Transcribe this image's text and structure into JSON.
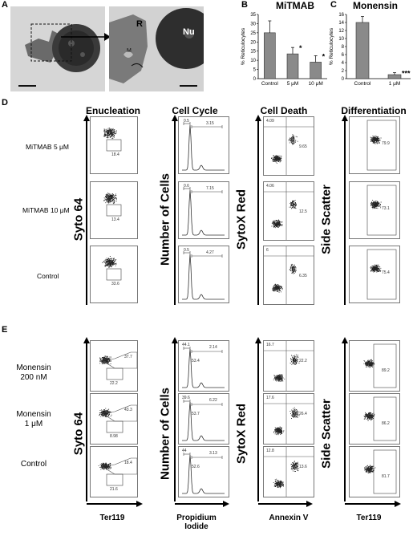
{
  "panels": {
    "A": "A",
    "B": "B",
    "C": "C",
    "D": "D",
    "E": "E"
  },
  "panel_a": {
    "label_r": "R",
    "label_nu": "Nu",
    "label_m": "M"
  },
  "chart_b": {
    "type": "bar",
    "title": "MiTMAB",
    "ylabel": "% Reticulocytes",
    "categories": [
      "Control",
      "5 μM",
      "10 μM"
    ],
    "values": [
      25,
      13.5,
      9
    ],
    "errors": [
      6.5,
      3.5,
      3.5
    ],
    "significance": [
      "",
      "*",
      "*"
    ],
    "ylim": [
      0,
      35
    ],
    "yticks": [
      0,
      5,
      10,
      15,
      20,
      25,
      30,
      35
    ]
  },
  "chart_c": {
    "type": "bar",
    "title": "Monensin",
    "ylabel": "% Reticulocytes",
    "categories": [
      "Control",
      "1 μM"
    ],
    "values": [
      14,
      1
    ],
    "errors": [
      1.5,
      0.5
    ],
    "significance": [
      "",
      "***"
    ],
    "ylim": [
      0,
      16
    ],
    "yticks": [
      0,
      2,
      4,
      6,
      8,
      10,
      12,
      14,
      16
    ]
  },
  "col_heads": [
    "Enucleation",
    "Cell Cycle",
    "Cell Death",
    "Differentiation"
  ],
  "d": {
    "rows": [
      "MiTMAB 5 μM",
      "MiTMAB 10 μM",
      "Control"
    ],
    "ylabels": [
      "Syto 64",
      "Number of Cells",
      "SytoX Red",
      "Side Scatter"
    ],
    "enucleation": [
      "18.4",
      "13.4",
      "33.6"
    ],
    "cell_cycle": [
      [
        "0.5",
        "3.15"
      ],
      [
        "0.6",
        "7.15"
      ],
      [
        "0.5",
        "4.27"
      ]
    ],
    "cell_death": [
      [
        "4.09",
        "9.65"
      ],
      [
        "4.06",
        "12.5"
      ],
      [
        "6",
        "6.35"
      ]
    ],
    "differentiation": [
      "79.9",
      "73.1",
      "75.4"
    ]
  },
  "e": {
    "rows": [
      [
        "Monensin",
        "200 nM"
      ],
      [
        "Monensin",
        "1 μM"
      ],
      [
        "Control",
        ""
      ]
    ],
    "ylabels": [
      "Syto 64",
      "Number of Cells",
      "SytoX Red",
      "Side Scatter"
    ],
    "enucleation": [
      [
        "37.7",
        "22.2"
      ],
      [
        "43.3",
        "8.98"
      ],
      [
        "18.4",
        "21.6"
      ]
    ],
    "cell_cycle": [
      [
        "44.1",
        "2.14",
        "53.4"
      ],
      [
        "39.6",
        "6.22",
        "53.7"
      ],
      [
        "44",
        "3.13",
        "52.6"
      ]
    ],
    "cell_death": [
      [
        "16.7",
        "22.2"
      ],
      [
        "17.6",
        "26.4"
      ],
      [
        "12.8",
        "13.6"
      ]
    ],
    "differentiation": [
      "89.2",
      "86.2",
      "81.7"
    ],
    "xlabels": [
      "Ter119",
      "Propidium\nIodide",
      "Annexin V",
      "Ter119"
    ]
  }
}
